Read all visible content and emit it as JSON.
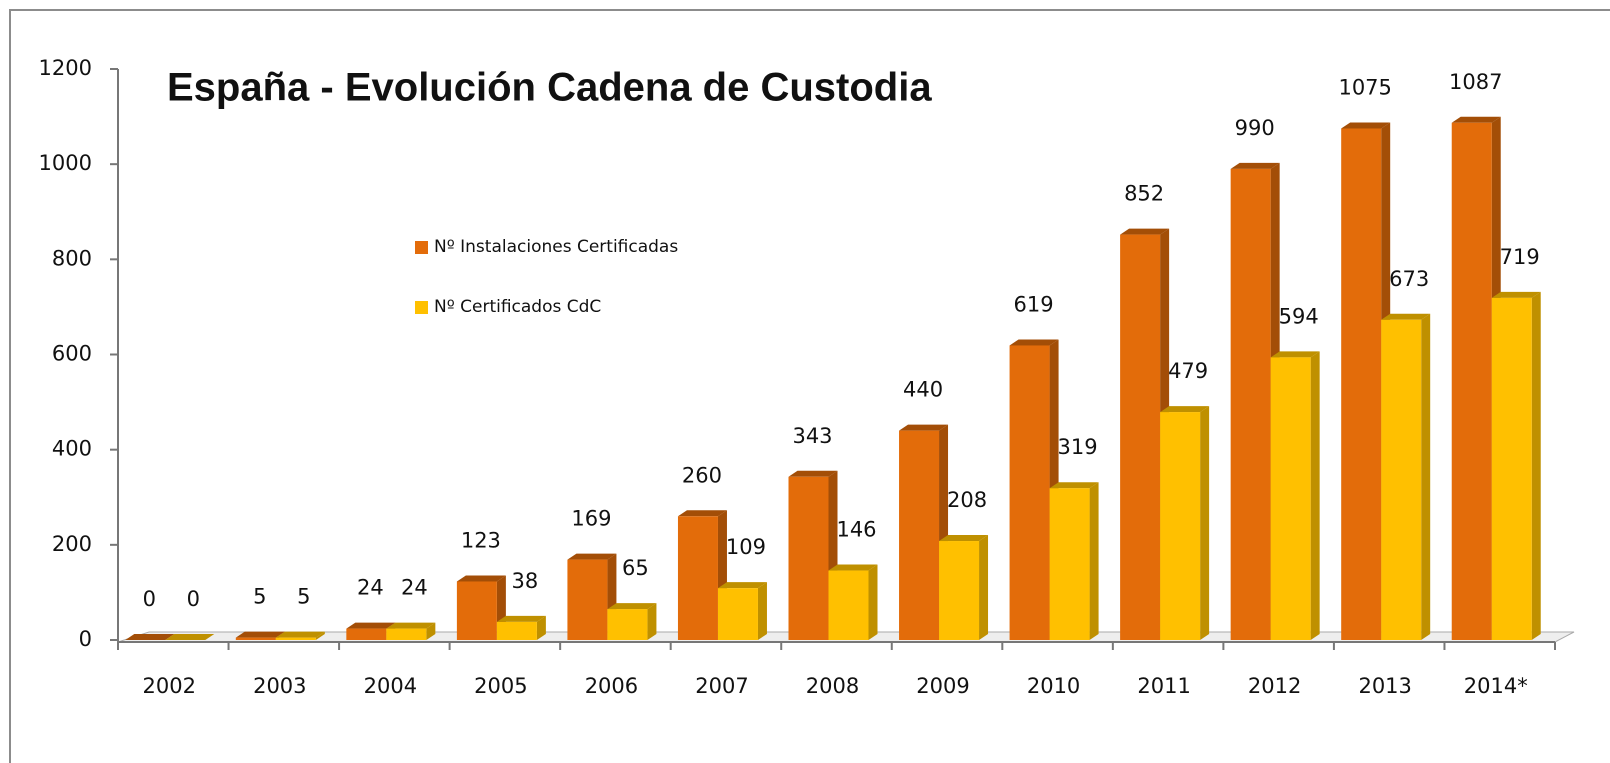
{
  "chart_data": {
    "type": "bar3d",
    "title": "España - Evolución Cadena de Custodia",
    "categories": [
      "2002",
      "2003",
      "2004",
      "2005",
      "2006",
      "2007",
      "2008",
      "2009",
      "2010",
      "2011",
      "2012",
      "2013",
      "2014*"
    ],
    "series": [
      {
        "name": "Nº Instalaciones Certificadas",
        "color": "#e36c0a",
        "side": "#a34e07",
        "values": [
          0,
          5,
          24,
          123,
          169,
          260,
          343,
          440,
          619,
          852,
          990,
          1075,
          1087
        ]
      },
      {
        "name": "Nº Certificados CdC",
        "color": "#ffc000",
        "side": "#bf9000",
        "values": [
          0,
          5,
          24,
          38,
          65,
          109,
          146,
          208,
          319,
          479,
          594,
          673,
          719
        ]
      }
    ],
    "ylim": [
      0,
      1200
    ],
    "yticks": [
      0,
      200,
      400,
      600,
      800,
      1000,
      1200
    ]
  }
}
